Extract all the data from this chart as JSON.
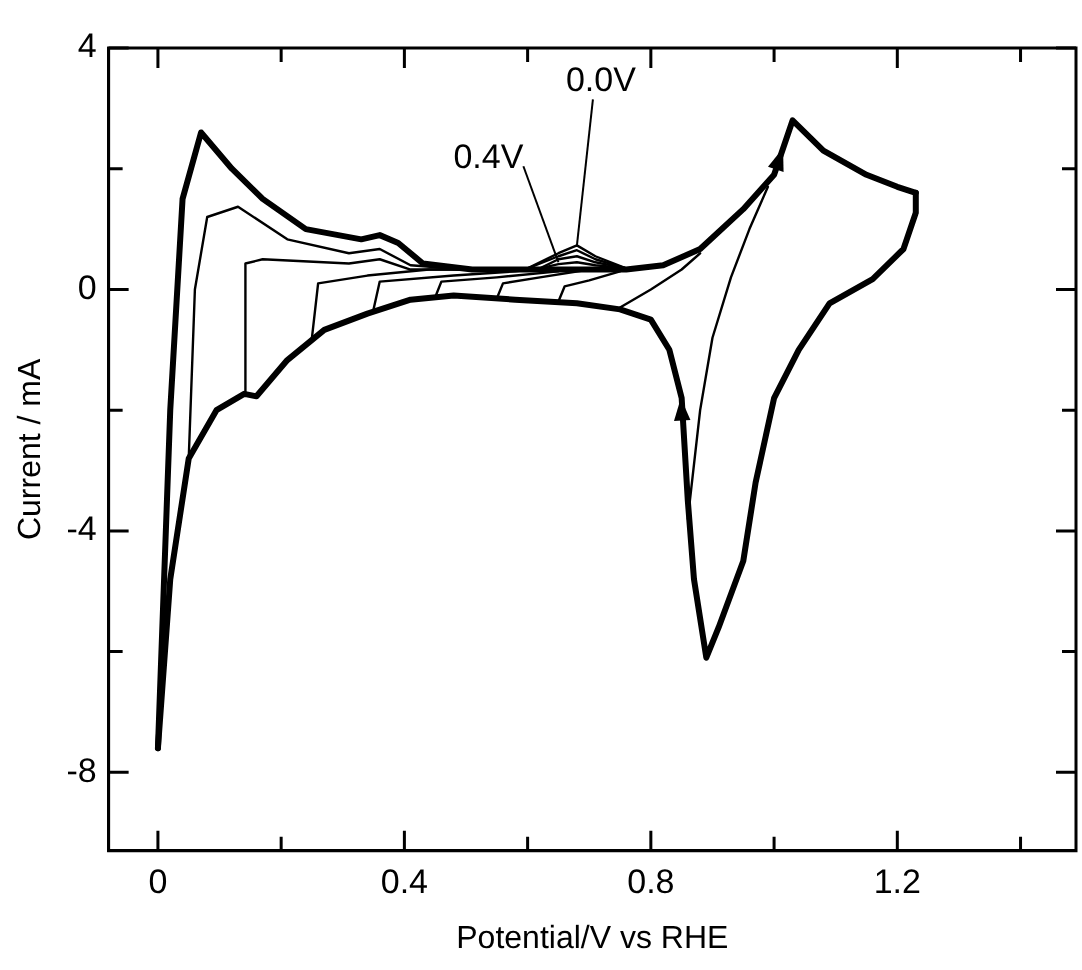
{
  "chart_data": {
    "type": "line",
    "xlabel": "Potential/V vs RHE",
    "ylabel": "Current / mA",
    "xlim": [
      -0.08,
      1.49
    ],
    "ylim": [
      -9.3,
      4
    ],
    "xticks": [
      0,
      {
        "value": 0.2,
        "label": null
      },
      0.4,
      {
        "value": 0.6,
        "label": null
      },
      0.8,
      {
        "value": 1.0,
        "label": null
      },
      1.2,
      {
        "value": 1.4,
        "label": null
      }
    ],
    "yticks": [
      4,
      {
        "value": 2,
        "label": null
      },
      0,
      {
        "value": -2,
        "label": null
      },
      -4,
      {
        "value": -6,
        "label": null
      },
      -8
    ],
    "grid": false,
    "legend": false,
    "marker": "none",
    "line_style": "solid",
    "annotations": [
      {
        "text": "0.0V",
        "x": 0.68,
        "y": 0.73
      },
      {
        "text": "0.4V",
        "x": 0.65,
        "y": 0.45
      }
    ],
    "series": [
      {
        "color": "#000000",
        "x": [
          0,
          0.02,
          0.04,
          0.07,
          0.12,
          0.17,
          0.24,
          0.33,
          0.36,
          0.39,
          0.43,
          0.51,
          0.6,
          0.68,
          0.76,
          0.82,
          0.88,
          0.95,
          1.0,
          1.03,
          1.08,
          1.15,
          1.2,
          1.23
        ],
        "values": [
          -7.6,
          -2,
          1.5,
          2.6,
          2.0,
          1.5,
          1.0,
          0.83,
          0.9,
          0.77,
          0.43,
          0.33,
          0.33,
          0.33,
          0.33,
          0.4,
          0.67,
          1.33,
          1.9,
          2.8,
          2.3,
          1.9,
          1.7,
          1.6
        ]
      },
      {
        "color": "#000000",
        "x": [
          1.23,
          1.23,
          1.21,
          1.16,
          1.09,
          1.04,
          1.0,
          0.97,
          0.95,
          0.91,
          0.89,
          0.87,
          0.86,
          0.85,
          0.83,
          0.8,
          0.75,
          0.68,
          0.58,
          0.48,
          0.41,
          0.34,
          0.27,
          0.21,
          0.16,
          0.14,
          0.095,
          0.05,
          0.02,
          0
        ],
        "values": [
          1.6,
          1.27,
          0.67,
          0.17,
          -0.23,
          -1.0,
          -1.8,
          -3.2,
          -4.5,
          -5.6,
          -6.1,
          -4.8,
          -3.5,
          -1.8,
          -1.0,
          -0.5,
          -0.33,
          -0.23,
          -0.17,
          -0.1,
          -0.17,
          -0.4,
          -0.67,
          -1.17,
          -1.77,
          -1.73,
          -2.0,
          -2.8,
          -4.8,
          -7.6
        ]
      },
      {
        "color": "#000000",
        "x": [
          0.05,
          0.06,
          0.08,
          0.13,
          0.21,
          0.31,
          0.36,
          0.41,
          0.5,
          0.6,
          0.65,
          0.68,
          0.71,
          0.76
        ],
        "values": [
          -2.8,
          0,
          1.2,
          1.37,
          0.83,
          0.6,
          0.67,
          0.4,
          0.33,
          0.35,
          0.6,
          0.73,
          0.55,
          0.35
        ]
      },
      {
        "color": "#000000",
        "x": [
          0.14,
          0.142,
          0.17,
          0.31,
          0.36,
          0.41,
          0.5,
          0.6,
          0.65,
          0.68,
          0.71,
          0.76
        ],
        "values": [
          -1.73,
          0.43,
          0.5,
          0.43,
          0.5,
          0.33,
          0.33,
          0.35,
          0.55,
          0.65,
          0.5,
          0.35
        ]
      },
      {
        "color": "#000000",
        "x": [
          0.25,
          0.26,
          0.34,
          0.44,
          0.55,
          0.62,
          0.65,
          0.68,
          0.71,
          0.76
        ],
        "values": [
          -0.8,
          0.1,
          0.23,
          0.33,
          0.33,
          0.35,
          0.5,
          0.55,
          0.45,
          0.35
        ]
      },
      {
        "color": "#000000",
        "x": [
          0.35,
          0.36,
          0.48,
          0.58,
          0.62,
          0.65,
          0.68,
          0.71,
          0.76
        ],
        "values": [
          -0.33,
          0.13,
          0.23,
          0.3,
          0.35,
          0.42,
          0.45,
          0.4,
          0.35
        ]
      },
      {
        "color": "#000000",
        "x": [
          0.45,
          0.46,
          0.55,
          0.65
        ],
        "values": [
          -0.13,
          0.13,
          0.2,
          0.3
        ]
      },
      {
        "color": "#000000",
        "x": [
          0.55,
          0.56,
          0.62,
          0.7
        ],
        "values": [
          -0.15,
          0.1,
          0.2,
          0.33
        ]
      },
      {
        "color": "#000000",
        "x": [
          0.65,
          0.66,
          0.7,
          0.75
        ],
        "values": [
          -0.2,
          0.05,
          0.15,
          0.3
        ]
      },
      {
        "color": "#000000",
        "x": [
          0.75,
          0.8,
          0.85,
          0.88
        ],
        "values": [
          -0.3,
          0.0,
          0.33,
          0.6
        ]
      },
      {
        "color": "#000000",
        "x": [
          0.86,
          0.88,
          0.9,
          0.93,
          0.96,
          0.99
        ],
        "values": [
          -3.8,
          -2.0,
          -0.8,
          0.2,
          1.0,
          1.7
        ]
      }
    ]
  }
}
